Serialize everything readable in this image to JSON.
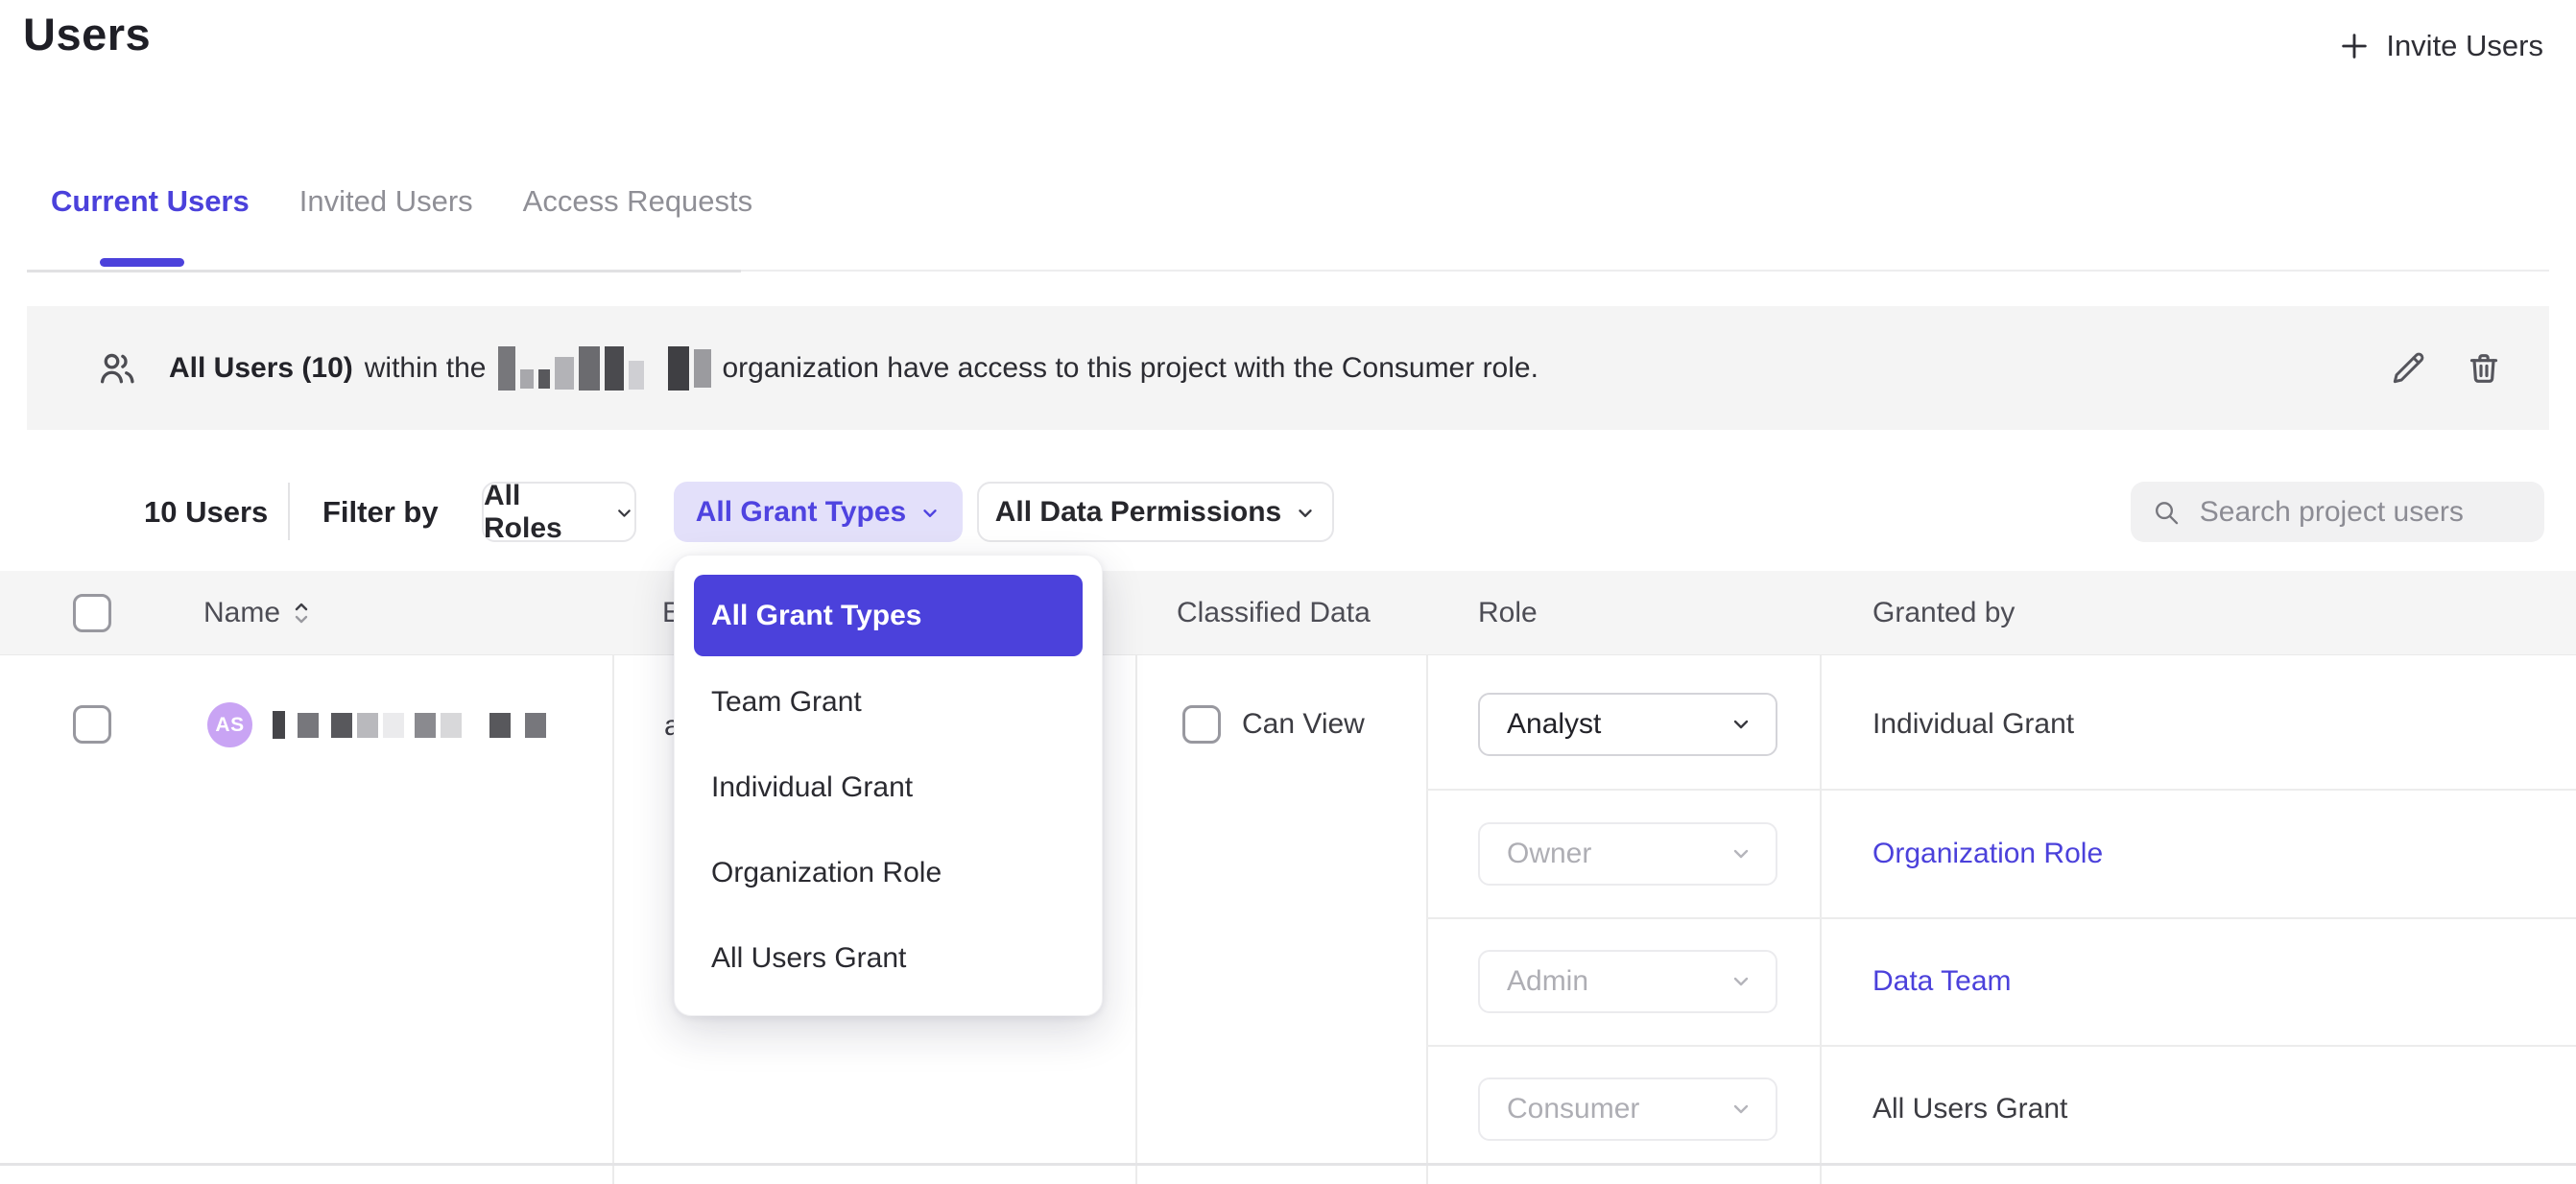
{
  "page": {
    "title": "Users"
  },
  "invite": {
    "label": "Invite Users"
  },
  "tabs": [
    {
      "label": "Current Users",
      "active": true
    },
    {
      "label": "Invited Users",
      "active": false
    },
    {
      "label": "Access Requests",
      "active": false
    }
  ],
  "banner": {
    "bold": "All Users (10)",
    "pre": "within the",
    "post": "organization have access to this project with the Consumer role."
  },
  "filters": {
    "count": "10 Users",
    "filter_by": "Filter by",
    "roles": "All Roles",
    "grant_types": "All Grant Types",
    "data_permissions": "All Data Permissions"
  },
  "search": {
    "placeholder": "Search project users"
  },
  "table": {
    "headers": {
      "name": "Name",
      "email": "E",
      "classified": "Classified Data",
      "role": "Role",
      "granted_by": "Granted by"
    }
  },
  "row": {
    "initials": "AS",
    "email_fragment": "a",
    "classified_label": "Can View",
    "grants": [
      {
        "role": "Analyst",
        "granted_by": "Individual Grant"
      },
      {
        "role": "Owner",
        "granted_by": "Organization Role"
      },
      {
        "role": "Admin",
        "granted_by": "Data Team"
      },
      {
        "role": "Consumer",
        "granted_by": "All Users Grant"
      }
    ]
  },
  "dropdown": {
    "items": [
      {
        "label": "All Grant Types",
        "selected": true
      },
      {
        "label": "Team Grant"
      },
      {
        "label": "Individual Grant"
      },
      {
        "label": "Organization Role"
      },
      {
        "label": "All Users Grant"
      }
    ]
  },
  "colors": {
    "accent": "#4b41db",
    "accent_light_bg": "#e3e0fa",
    "avatar_bg": "#c9a4f4",
    "banner_bg": "#f4f4f4",
    "header_bg": "#f5f5f5"
  }
}
